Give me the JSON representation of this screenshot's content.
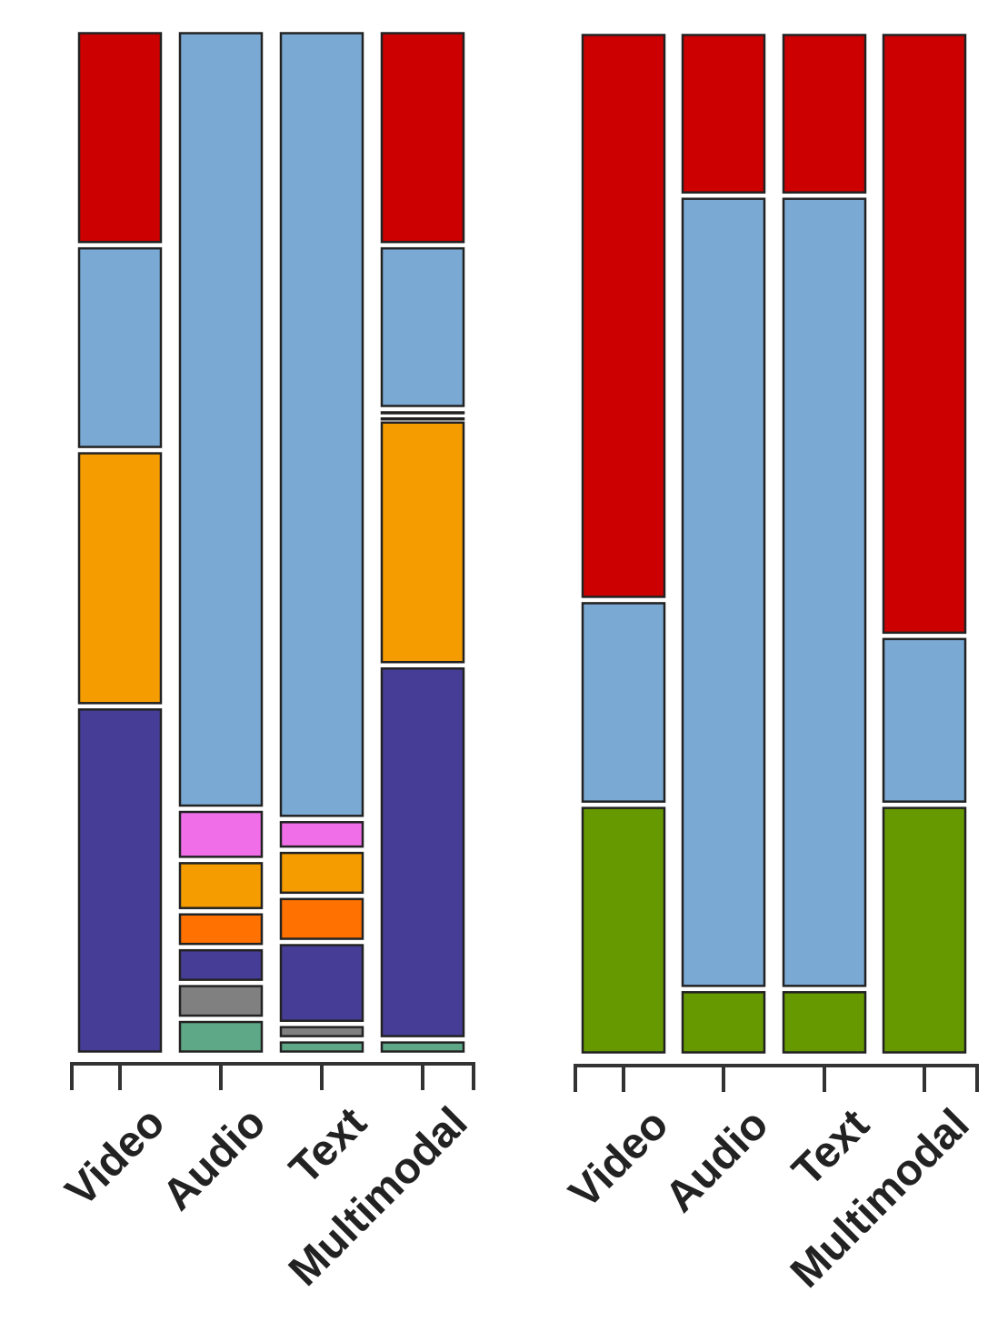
{
  "chart_data": [
    {
      "type": "bar",
      "stacked": true,
      "normalized": true,
      "categories": [
        "Video",
        "Audio",
        "Text",
        "Multimodal"
      ],
      "stacks": [
        {
          "category": "Video",
          "segments": [
            {
              "value": 0.34,
              "color": "#463e96"
            },
            {
              "value": 0.25,
              "color": "#f59c00"
            },
            {
              "value": 0.2,
              "color": "#7aa9d3"
            },
            {
              "value": 0.21,
              "color": "#cc0000"
            }
          ]
        },
        {
          "category": "Audio",
          "segments": [
            {
              "value": 0.035,
              "color": "#5ea888"
            },
            {
              "value": 0.035,
              "color": "#808080"
            },
            {
              "value": 0.035,
              "color": "#463e96"
            },
            {
              "value": 0.035,
              "color": "#ff7100"
            },
            {
              "value": 0.05,
              "color": "#f59c00"
            },
            {
              "value": 0.05,
              "color": "#f06fe9"
            },
            {
              "value": 0.76,
              "color": "#7aa9d3"
            }
          ]
        },
        {
          "category": "Text",
          "segments": [
            {
              "value": 0.015,
              "color": "#5ea888"
            },
            {
              "value": 0.015,
              "color": "#808080"
            },
            {
              "value": 0.08,
              "color": "#463e96"
            },
            {
              "value": 0.045,
              "color": "#ff7100"
            },
            {
              "value": 0.045,
              "color": "#f59c00"
            },
            {
              "value": 0.03,
              "color": "#f06fe9"
            },
            {
              "value": 0.77,
              "color": "#7aa9d3"
            }
          ]
        },
        {
          "category": "Multimodal",
          "segments": [
            {
              "value": 0.015,
              "color": "#5ea888"
            },
            {
              "value": 0.365,
              "color": "#463e96"
            },
            {
              "value": 0.24,
              "color": "#f59c00"
            },
            {
              "value": 0.004,
              "color": "#463e96"
            },
            {
              "value": 0.006,
              "color": "#7aa9d3"
            },
            {
              "value": 0.16,
              "color": "#7aa9d3"
            },
            {
              "value": 0.21,
              "color": "#cc0000"
            }
          ]
        }
      ]
    },
    {
      "type": "bar",
      "stacked": true,
      "normalized": true,
      "categories": [
        "Video",
        "Audio",
        "Text",
        "Multimodal"
      ],
      "stacks": [
        {
          "category": "Video",
          "segments": [
            {
              "value": 0.245,
              "color": "#669900"
            },
            {
              "value": 0.2,
              "color": "#7aa9d3"
            },
            {
              "value": 0.555,
              "color": "#cc0000"
            }
          ]
        },
        {
          "category": "Audio",
          "segments": [
            {
              "value": 0.065,
              "color": "#669900"
            },
            {
              "value": 0.775,
              "color": "#7aa9d3"
            },
            {
              "value": 0.16,
              "color": "#cc0000"
            }
          ]
        },
        {
          "category": "Text",
          "segments": [
            {
              "value": 0.065,
              "color": "#669900"
            },
            {
              "value": 0.775,
              "color": "#7aa9d3"
            },
            {
              "value": 0.16,
              "color": "#cc0000"
            }
          ]
        },
        {
          "category": "Multimodal",
          "segments": [
            {
              "value": 0.245,
              "color": "#669900"
            },
            {
              "value": 0.165,
              "color": "#7aa9d3"
            },
            {
              "value": 0.59,
              "color": "#cc0000"
            }
          ]
        }
      ]
    }
  ]
}
